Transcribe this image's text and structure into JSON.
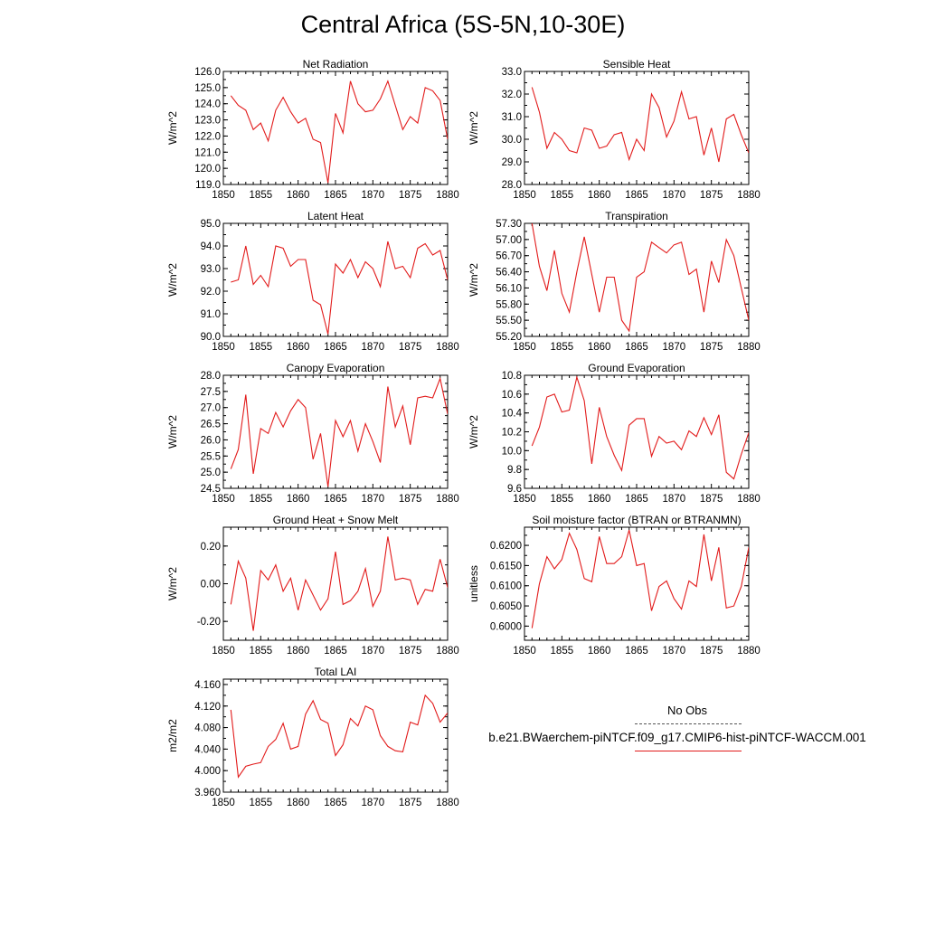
{
  "title": "Central Africa (5S-5N,10-30E)",
  "legend": {
    "obs_label": "No Obs",
    "case_label": "b.e21.BWaerchem-piNTCF.f09_g17.CMIP6-hist-piNTCF-WACCM.001",
    "case_color": "#e21b1b"
  },
  "chart_data": [
    {
      "type": "line",
      "title": "Net Radiation",
      "ylabel": "W/m^2",
      "xlim": [
        1850,
        1880
      ],
      "ylim": [
        119.0,
        126.0
      ],
      "xticks": [
        "1850",
        "1855",
        "1860",
        "1865",
        "1870",
        "1875",
        "1880"
      ],
      "yticks": [
        "126.0",
        "125.0",
        "124.0",
        "123.0",
        "122.0",
        "121.0",
        "120.0",
        "119.0"
      ],
      "x": [
        1851,
        1852,
        1853,
        1854,
        1855,
        1856,
        1857,
        1858,
        1859,
        1860,
        1861,
        1862,
        1863,
        1864,
        1865,
        1866,
        1867,
        1868,
        1869,
        1870,
        1871,
        1872,
        1873,
        1874,
        1875,
        1876,
        1877,
        1878,
        1879,
        1880
      ],
      "series": [
        {
          "color": "#e21b1b",
          "values": [
            124.5,
            123.9,
            123.6,
            122.4,
            122.8,
            121.7,
            123.6,
            124.4,
            123.5,
            122.8,
            123.1,
            121.8,
            121.6,
            119.1,
            123.4,
            122.2,
            125.4,
            124.0,
            123.5,
            123.6,
            124.3,
            125.4,
            123.9,
            122.4,
            123.2,
            122.8,
            125.0,
            124.8,
            124.2,
            121.8
          ]
        }
      ]
    },
    {
      "type": "line",
      "title": "Sensible Heat",
      "ylabel": "W/m^2",
      "xlim": [
        1850,
        1880
      ],
      "ylim": [
        28.0,
        33.0
      ],
      "xticks": [
        "1850",
        "1855",
        "1860",
        "1865",
        "1870",
        "1875",
        "1880"
      ],
      "yticks": [
        "33.0",
        "32.0",
        "31.0",
        "30.0",
        "29.0",
        "28.0"
      ],
      "x": [
        1851,
        1852,
        1853,
        1854,
        1855,
        1856,
        1857,
        1858,
        1859,
        1860,
        1861,
        1862,
        1863,
        1864,
        1865,
        1866,
        1867,
        1868,
        1869,
        1870,
        1871,
        1872,
        1873,
        1874,
        1875,
        1876,
        1877,
        1878,
        1879,
        1880
      ],
      "series": [
        {
          "color": "#e21b1b",
          "values": [
            32.3,
            31.2,
            29.6,
            30.3,
            30.0,
            29.5,
            29.4,
            30.5,
            30.4,
            29.6,
            29.7,
            30.2,
            30.3,
            29.1,
            30.0,
            29.5,
            32.0,
            31.4,
            30.1,
            30.8,
            32.1,
            30.9,
            31.0,
            29.3,
            30.5,
            29.0,
            30.9,
            31.1,
            30.2,
            29.4
          ]
        }
      ]
    },
    {
      "type": "line",
      "title": "Latent Heat",
      "ylabel": "W/m^2",
      "xlim": [
        1850,
        1880
      ],
      "ylim": [
        90.0,
        95.0
      ],
      "xticks": [
        "1850",
        "1855",
        "1860",
        "1865",
        "1870",
        "1875",
        "1880"
      ],
      "yticks": [
        "95.0",
        "94.0",
        "93.0",
        "92.0",
        "91.0",
        "90.0"
      ],
      "x": [
        1851,
        1852,
        1853,
        1854,
        1855,
        1856,
        1857,
        1858,
        1859,
        1860,
        1861,
        1862,
        1863,
        1864,
        1865,
        1866,
        1867,
        1868,
        1869,
        1870,
        1871,
        1872,
        1873,
        1874,
        1875,
        1876,
        1877,
        1878,
        1879,
        1880
      ],
      "series": [
        {
          "color": "#e21b1b",
          "values": [
            92.4,
            92.5,
            94.0,
            92.3,
            92.7,
            92.2,
            94.0,
            93.9,
            93.1,
            93.4,
            93.4,
            91.6,
            91.4,
            90.1,
            93.2,
            92.8,
            93.4,
            92.6,
            93.3,
            93.0,
            92.2,
            94.2,
            93.0,
            93.1,
            92.6,
            93.9,
            94.1,
            93.6,
            93.8,
            92.5
          ]
        }
      ]
    },
    {
      "type": "line",
      "title": "Transpiration",
      "ylabel": "W/m^2",
      "xlim": [
        1850,
        1880
      ],
      "ylim": [
        55.2,
        57.3
      ],
      "xticks": [
        "1850",
        "1855",
        "1860",
        "1865",
        "1870",
        "1875",
        "1880"
      ],
      "yticks": [
        "57.30",
        "57.00",
        "56.70",
        "56.40",
        "56.10",
        "55.80",
        "55.50",
        "55.20"
      ],
      "x": [
        1851,
        1852,
        1853,
        1854,
        1855,
        1856,
        1857,
        1858,
        1859,
        1860,
        1861,
        1862,
        1863,
        1864,
        1865,
        1866,
        1867,
        1868,
        1869,
        1870,
        1871,
        1872,
        1873,
        1874,
        1875,
        1876,
        1877,
        1878,
        1879,
        1880
      ],
      "series": [
        {
          "color": "#e21b1b",
          "values": [
            57.3,
            56.5,
            56.05,
            56.8,
            56.0,
            55.65,
            56.4,
            57.05,
            56.35,
            55.65,
            56.3,
            56.3,
            55.5,
            55.3,
            56.3,
            56.4,
            56.95,
            56.85,
            56.75,
            56.9,
            56.95,
            56.35,
            56.45,
            55.65,
            56.6,
            56.2,
            57.0,
            56.7,
            56.1,
            55.5
          ]
        }
      ]
    },
    {
      "type": "line",
      "title": "Canopy Evaporation",
      "ylabel": "W/m^2",
      "xlim": [
        1850,
        1880
      ],
      "ylim": [
        24.5,
        28.0
      ],
      "xticks": [
        "1850",
        "1855",
        "1860",
        "1865",
        "1870",
        "1875",
        "1880"
      ],
      "yticks": [
        "28.0",
        "27.5",
        "27.0",
        "26.5",
        "26.0",
        "25.5",
        "25.0",
        "24.5"
      ],
      "x": [
        1851,
        1852,
        1853,
        1854,
        1855,
        1856,
        1857,
        1858,
        1859,
        1860,
        1861,
        1862,
        1863,
        1864,
        1865,
        1866,
        1867,
        1868,
        1869,
        1870,
        1871,
        1872,
        1873,
        1874,
        1875,
        1876,
        1877,
        1878,
        1879,
        1880
      ],
      "series": [
        {
          "color": "#e21b1b",
          "values": [
            25.1,
            25.7,
            27.4,
            24.95,
            26.35,
            26.2,
            26.85,
            26.4,
            26.9,
            27.25,
            27.0,
            25.4,
            26.2,
            24.55,
            26.6,
            26.1,
            26.6,
            25.65,
            26.5,
            25.95,
            25.3,
            27.65,
            26.4,
            27.05,
            25.85,
            27.3,
            27.35,
            27.3,
            27.9,
            26.8
          ]
        }
      ]
    },
    {
      "type": "line",
      "title": "Ground Evaporation",
      "ylabel": "W/m^2",
      "xlim": [
        1850,
        1880
      ],
      "ylim": [
        9.6,
        10.8
      ],
      "xticks": [
        "1850",
        "1855",
        "1860",
        "1865",
        "1870",
        "1875",
        "1880"
      ],
      "yticks": [
        "10.8",
        "10.6",
        "10.4",
        "10.2",
        "10.0",
        "9.8",
        "9.6"
      ],
      "x": [
        1851,
        1852,
        1853,
        1854,
        1855,
        1856,
        1857,
        1858,
        1859,
        1860,
        1861,
        1862,
        1863,
        1864,
        1865,
        1866,
        1867,
        1868,
        1869,
        1870,
        1871,
        1872,
        1873,
        1874,
        1875,
        1876,
        1877,
        1878,
        1879,
        1880
      ],
      "series": [
        {
          "color": "#e21b1b",
          "values": [
            10.05,
            10.25,
            10.57,
            10.6,
            10.41,
            10.43,
            10.78,
            10.53,
            9.86,
            10.46,
            10.15,
            9.95,
            9.79,
            10.27,
            10.34,
            10.34,
            9.94,
            10.15,
            10.08,
            10.1,
            10.01,
            10.21,
            10.15,
            10.35,
            10.17,
            10.38,
            9.77,
            9.7,
            9.96,
            10.19
          ]
        }
      ]
    },
    {
      "type": "line",
      "title": "Ground Heat + Snow Melt",
      "ylabel": "W/m^2",
      "xlim": [
        1850,
        1880
      ],
      "ylim": [
        -0.3,
        0.3
      ],
      "xticks": [
        "1850",
        "1855",
        "1860",
        "1865",
        "1870",
        "1875",
        "1880"
      ],
      "yticks": [
        "0.20",
        "0.00",
        "-0.20"
      ],
      "ytick_values": [
        0.2,
        0.0,
        -0.2
      ],
      "x": [
        1851,
        1852,
        1853,
        1854,
        1855,
        1856,
        1857,
        1858,
        1859,
        1860,
        1861,
        1862,
        1863,
        1864,
        1865,
        1866,
        1867,
        1868,
        1869,
        1870,
        1871,
        1872,
        1873,
        1874,
        1875,
        1876,
        1877,
        1878,
        1879,
        1880
      ],
      "series": [
        {
          "color": "#e21b1b",
          "values": [
            -0.11,
            0.12,
            0.03,
            -0.25,
            0.07,
            0.02,
            0.1,
            -0.04,
            0.03,
            -0.14,
            0.02,
            -0.06,
            -0.14,
            -0.08,
            0.17,
            -0.11,
            -0.09,
            -0.04,
            0.08,
            -0.12,
            -0.04,
            0.25,
            0.02,
            0.03,
            0.02,
            -0.11,
            -0.03,
            -0.04,
            0.13,
            -0.02
          ]
        }
      ]
    },
    {
      "type": "line",
      "title": "Soil moisture factor (BTRAN or BTRANMN)",
      "ylabel": "unitless",
      "xlim": [
        1850,
        1880
      ],
      "ylim": [
        0.5965,
        0.6245
      ],
      "xticks": [
        "1850",
        "1855",
        "1860",
        "1865",
        "1870",
        "1875",
        "1880"
      ],
      "yticks": [
        "0.6200",
        "0.6150",
        "0.6100",
        "0.6050",
        "0.6000"
      ],
      "ytick_values": [
        0.62,
        0.615,
        0.61,
        0.605,
        0.6
      ],
      "x": [
        1851,
        1852,
        1853,
        1854,
        1855,
        1856,
        1857,
        1858,
        1859,
        1860,
        1861,
        1862,
        1863,
        1864,
        1865,
        1866,
        1867,
        1868,
        1869,
        1870,
        1871,
        1872,
        1873,
        1874,
        1875,
        1876,
        1877,
        1878,
        1879,
        1880
      ],
      "series": [
        {
          "color": "#e21b1b",
          "values": [
            0.5995,
            0.6105,
            0.6172,
            0.6142,
            0.6165,
            0.623,
            0.619,
            0.6118,
            0.611,
            0.6222,
            0.6155,
            0.6155,
            0.6172,
            0.6238,
            0.615,
            0.6155,
            0.6038,
            0.6098,
            0.6112,
            0.6068,
            0.6042,
            0.6112,
            0.6098,
            0.6227,
            0.6112,
            0.6195,
            0.6045,
            0.605,
            0.6098,
            0.6195
          ]
        }
      ]
    },
    {
      "type": "line",
      "title": "Total LAI",
      "ylabel": "m2/m2",
      "xlim": [
        1850,
        1880
      ],
      "ylim": [
        3.96,
        4.17
      ],
      "xticks": [
        "1850",
        "1855",
        "1860",
        "1865",
        "1870",
        "1875",
        "1880"
      ],
      "yticks": [
        "4.160",
        "4.120",
        "4.080",
        "4.040",
        "4.000",
        "3.960"
      ],
      "ytick_values": [
        4.16,
        4.12,
        4.08,
        4.04,
        4.0,
        3.96
      ],
      "x": [
        1851,
        1852,
        1853,
        1854,
        1855,
        1856,
        1857,
        1858,
        1859,
        1860,
        1861,
        1862,
        1863,
        1864,
        1865,
        1866,
        1867,
        1868,
        1869,
        1870,
        1871,
        1872,
        1873,
        1874,
        1875,
        1876,
        1877,
        1878,
        1879,
        1880
      ],
      "series": [
        {
          "color": "#e21b1b",
          "values": [
            4.113,
            3.988,
            4.008,
            4.012,
            4.015,
            4.045,
            4.058,
            4.088,
            4.04,
            4.045,
            4.105,
            4.13,
            4.095,
            4.088,
            4.028,
            4.048,
            4.097,
            4.083,
            4.12,
            4.113,
            4.065,
            4.045,
            4.037,
            4.035,
            4.09,
            4.085,
            4.14,
            4.125,
            4.09,
            4.107
          ]
        }
      ]
    }
  ]
}
